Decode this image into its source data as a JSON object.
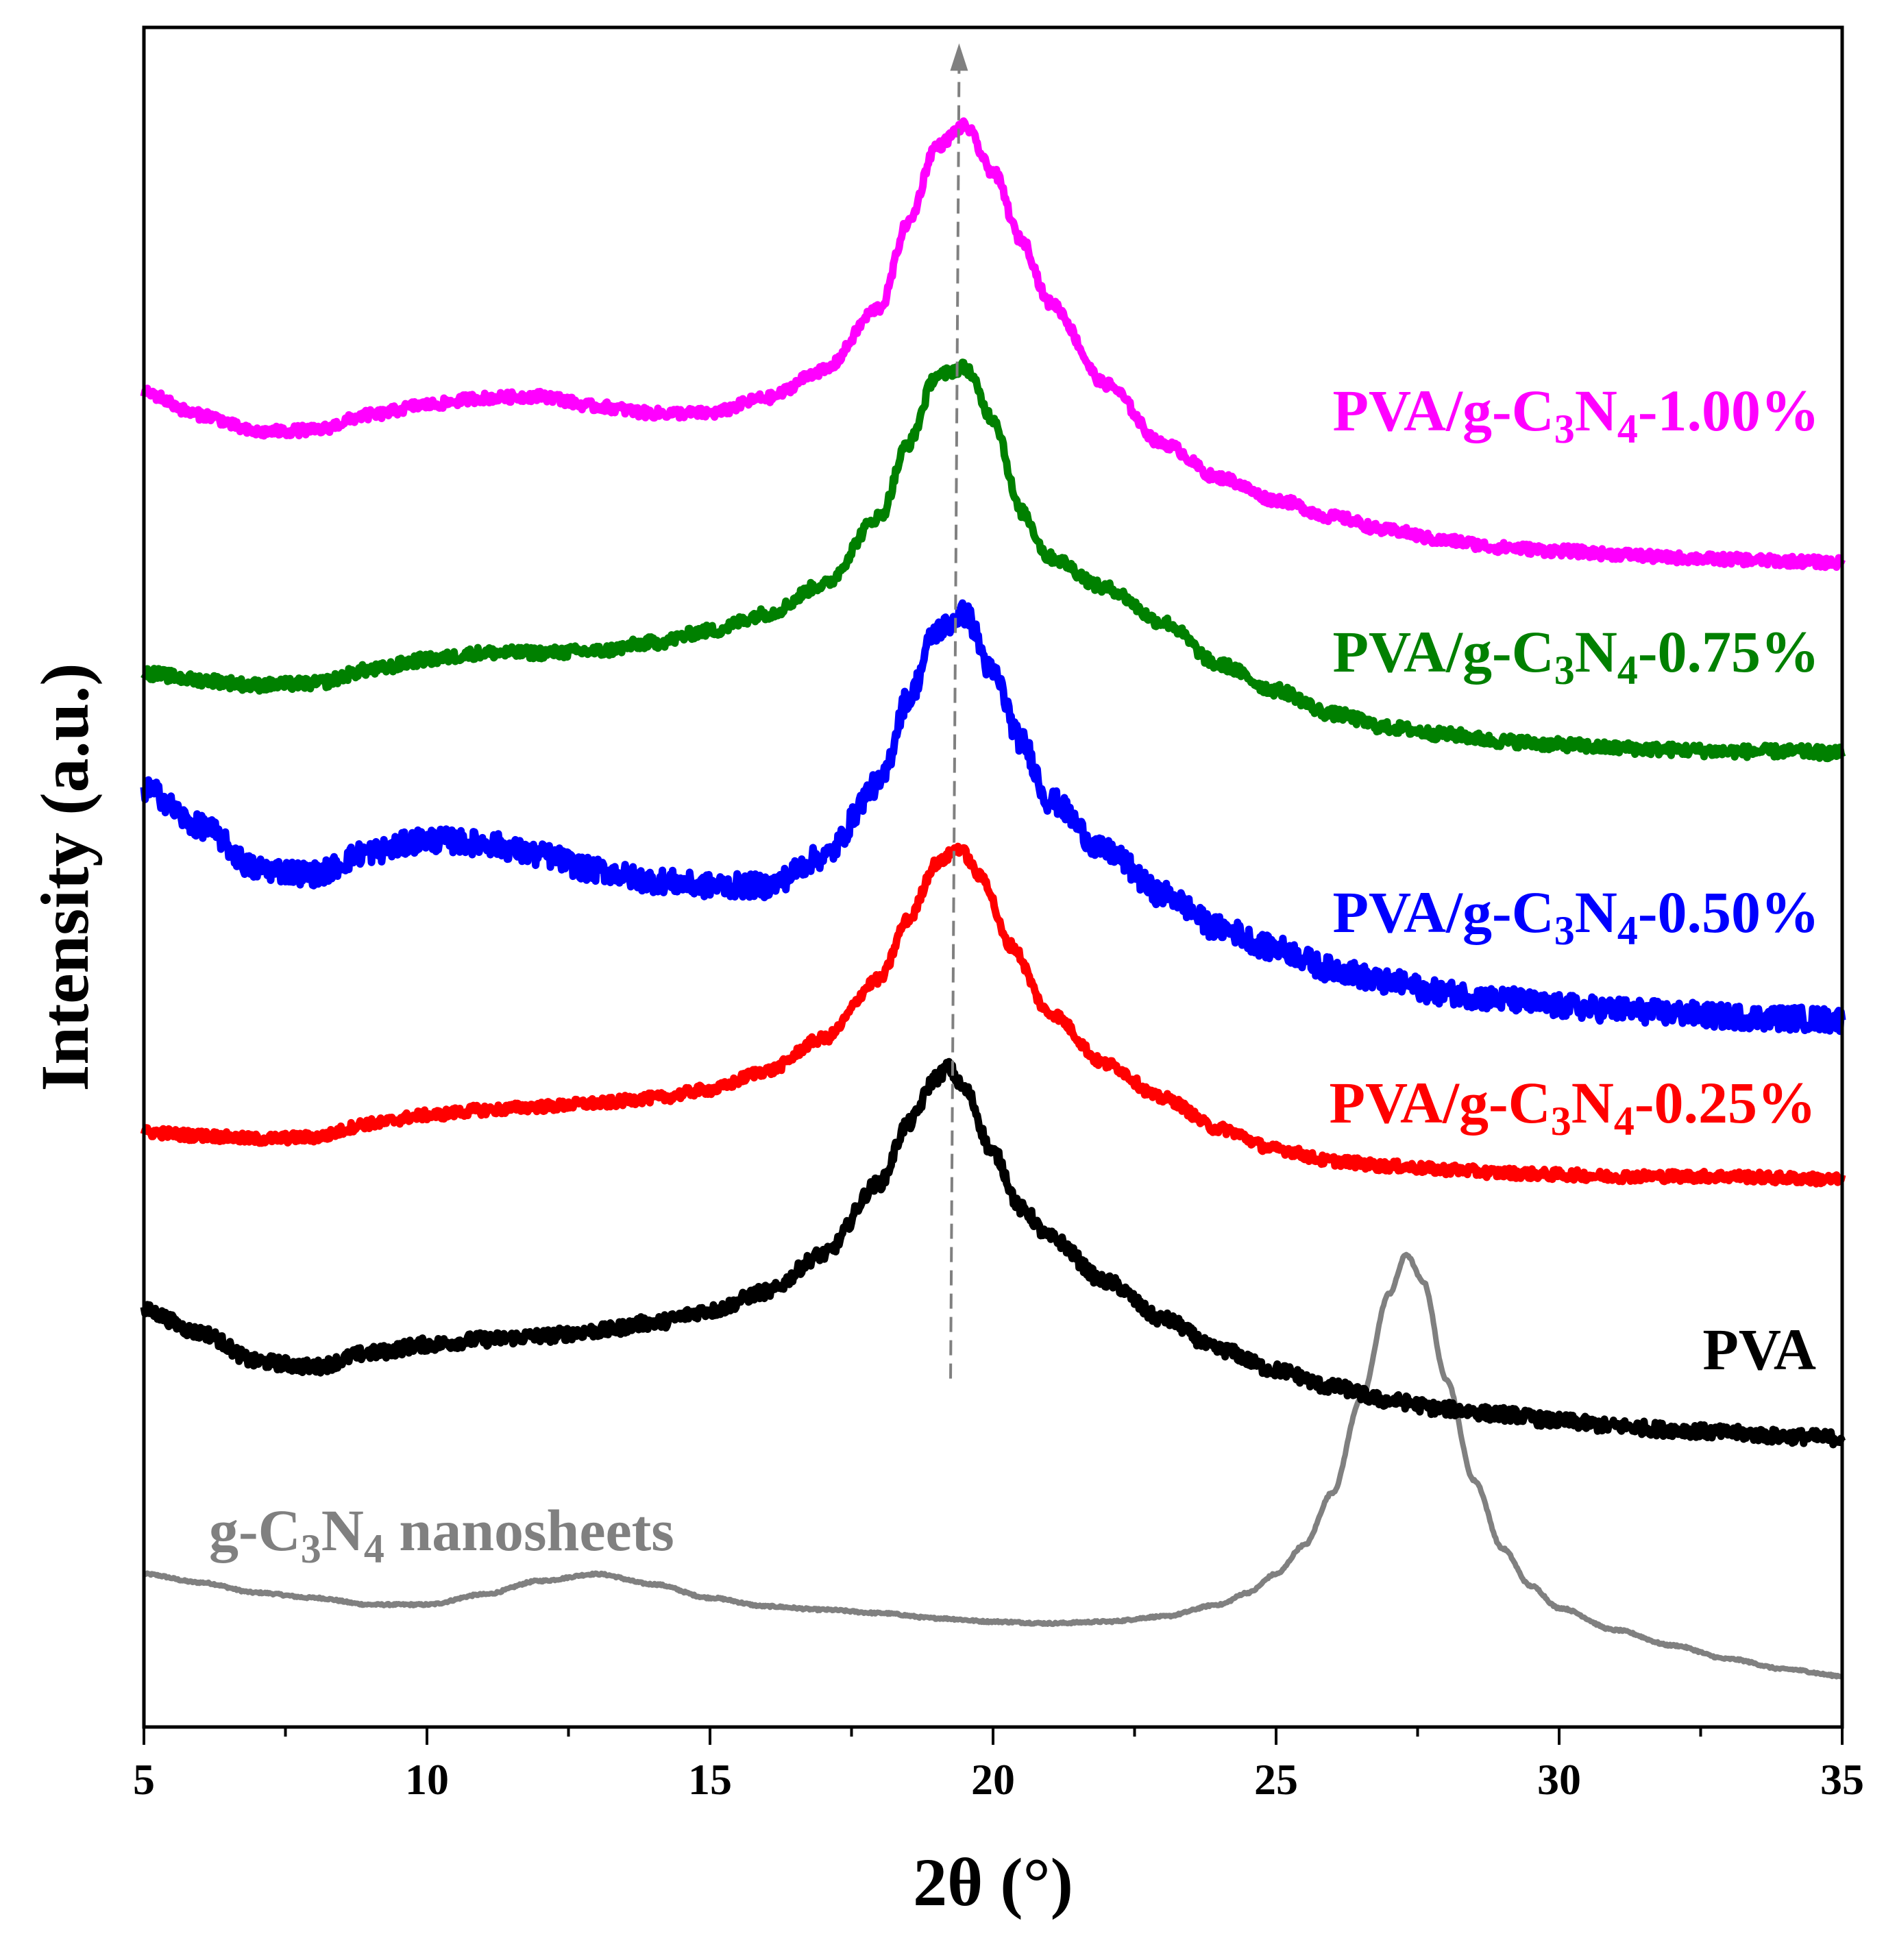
{
  "chart_data": {
    "type": "line",
    "title": "",
    "xlabel": "2θ (°)",
    "ylabel": "Intensity (a.u.)",
    "xlim": [
      5,
      35
    ],
    "ylim": [
      0,
      10
    ],
    "xticks": [
      5,
      10,
      15,
      20,
      25,
      30,
      35
    ],
    "xtick_labels": [
      "5",
      "10",
      "15",
      "20",
      "25",
      "30",
      "35"
    ],
    "yticks": "none",
    "grid": false,
    "legend": "labels beside each curve",
    "annotation": "dashed arrow at about 2θ = 19.4° pointing up",
    "series": [
      {
        "name": "g-C3N4 nanosheets",
        "label": {
          "main": "g-C",
          "sub1": "3",
          "mid": "N",
          "sub2": "4",
          "end": " nanosheets"
        },
        "color": "#808080",
        "noise": 0.006,
        "x": [
          5,
          6,
          7,
          8,
          9,
          10,
          11,
          12,
          13,
          14,
          15,
          16,
          17,
          18,
          19,
          20,
          21,
          22,
          23,
          24,
          24.5,
          25,
          25.5,
          26,
          26.5,
          27,
          27.3,
          27.6,
          28,
          28.5,
          29,
          29.5,
          30,
          31,
          32,
          33,
          34,
          35
        ],
        "y": [
          0.9,
          0.85,
          0.79,
          0.76,
          0.72,
          0.72,
          0.78,
          0.86,
          0.9,
          0.84,
          0.76,
          0.71,
          0.69,
          0.67,
          0.64,
          0.62,
          0.61,
          0.62,
          0.65,
          0.72,
          0.79,
          0.9,
          1.07,
          1.38,
          1.93,
          2.55,
          2.78,
          2.62,
          2.05,
          1.45,
          1.05,
          0.83,
          0.7,
          0.57,
          0.48,
          0.4,
          0.34,
          0.3
        ]
      },
      {
        "name": "PVA",
        "label": {
          "main": "PVA"
        },
        "color": "#000000",
        "noise": 0.04,
        "x": [
          5,
          6,
          7,
          8,
          9,
          10,
          11,
          12,
          13,
          14,
          15,
          16,
          17,
          18,
          18.5,
          19,
          19.2,
          19.5,
          20,
          20.5,
          21,
          22,
          23,
          24,
          25,
          26,
          27,
          28,
          29,
          30,
          31,
          32,
          33,
          34,
          35
        ],
        "y": [
          2.45,
          2.32,
          2.15,
          2.12,
          2.2,
          2.25,
          2.28,
          2.3,
          2.33,
          2.38,
          2.45,
          2.56,
          2.78,
          3.2,
          3.55,
          3.82,
          3.88,
          3.75,
          3.38,
          3.05,
          2.88,
          2.62,
          2.4,
          2.22,
          2.1,
          2.0,
          1.92,
          1.87,
          1.84,
          1.8,
          1.77,
          1.75,
          1.73,
          1.71,
          1.7
        ]
      },
      {
        "name": "PVA/g-C3N4-0.25%",
        "label": {
          "main": "PVA/g-C",
          "sub1": "3",
          "mid": "N",
          "sub2": "4",
          "end": "-0.25%"
        },
        "color": "#ff0000",
        "noise": 0.03,
        "x": [
          5,
          6,
          7,
          8,
          9,
          10,
          11,
          12,
          13,
          14,
          15,
          16,
          17,
          18,
          18.5,
          19,
          19.4,
          19.8,
          20.3,
          21,
          22,
          23,
          24,
          25,
          26,
          27,
          28,
          29,
          30,
          31,
          32,
          33,
          34,
          35
        ],
        "y": [
          3.5,
          3.48,
          3.46,
          3.47,
          3.55,
          3.6,
          3.63,
          3.65,
          3.67,
          3.7,
          3.75,
          3.86,
          4.05,
          4.4,
          4.75,
          5.08,
          5.17,
          5.0,
          4.6,
          4.2,
          3.9,
          3.7,
          3.52,
          3.4,
          3.33,
          3.3,
          3.28,
          3.26,
          3.25,
          3.24,
          3.24,
          3.24,
          3.23,
          3.22
        ]
      },
      {
        "name": "PVA/g-C3N4-0.50%",
        "label": {
          "main": "PVA/g-C",
          "sub1": "3",
          "mid": "N",
          "sub2": "4",
          "end": "-0.50%"
        },
        "color": "#0000ff",
        "noise": 0.07,
        "x": [
          5,
          6,
          7,
          8,
          9,
          10,
          11,
          12,
          13,
          14,
          15,
          16,
          17,
          18,
          18.5,
          19,
          19.5,
          20,
          20.5,
          21,
          22,
          23,
          24,
          25,
          26,
          27,
          28,
          29,
          30,
          31,
          32,
          33,
          34,
          35
        ],
        "y": [
          5.52,
          5.3,
          5.05,
          5.02,
          5.15,
          5.22,
          5.2,
          5.13,
          5.04,
          4.98,
          4.95,
          4.95,
          5.12,
          5.55,
          6.05,
          6.45,
          6.55,
          6.2,
          5.8,
          5.45,
          5.15,
          4.9,
          4.7,
          4.58,
          4.46,
          4.38,
          4.32,
          4.28,
          4.24,
          4.22,
          4.2,
          4.18,
          4.17,
          4.16
        ]
      },
      {
        "name": "PVA/g-C3N4-0.75%",
        "label": {
          "main": "PVA/g-C",
          "sub1": "3",
          "mid": "N",
          "sub2": "4",
          "end": "-0.75%"
        },
        "color": "#008000",
        "noise": 0.035,
        "x": [
          5,
          6,
          7,
          8,
          9,
          10,
          11,
          12,
          13,
          14,
          15,
          16,
          17,
          18,
          18.5,
          19,
          19.5,
          20,
          20.5,
          21,
          22,
          23,
          24,
          25,
          26,
          27,
          28,
          29,
          30,
          31,
          32,
          33,
          34,
          35
        ],
        "y": [
          6.2,
          6.16,
          6.13,
          6.14,
          6.22,
          6.28,
          6.32,
          6.32,
          6.33,
          6.38,
          6.45,
          6.55,
          6.72,
          7.12,
          7.55,
          7.95,
          8.0,
          7.7,
          7.15,
          6.88,
          6.7,
          6.5,
          6.25,
          6.1,
          5.96,
          5.88,
          5.84,
          5.8,
          5.78,
          5.76,
          5.75,
          5.74,
          5.74,
          5.73
        ]
      },
      {
        "name": "PVA/g-C3N4-1.00%",
        "label": {
          "main": "PVA/g-C",
          "sub1": "3",
          "mid": "N",
          "sub2": "4",
          "end": "-1.00%"
        },
        "color": "#ff00ff",
        "noise": 0.03,
        "x": [
          5,
          6,
          7,
          8,
          9,
          10,
          11,
          12,
          13,
          14,
          15,
          16,
          17,
          18,
          18.5,
          19,
          19.5,
          20,
          20.5,
          21,
          22,
          23,
          24,
          25,
          26,
          27,
          28,
          29,
          30,
          31,
          32,
          33,
          34,
          35
        ],
        "y": [
          7.85,
          7.72,
          7.62,
          7.63,
          7.72,
          7.78,
          7.82,
          7.83,
          7.77,
          7.73,
          7.73,
          7.82,
          7.98,
          8.35,
          8.85,
          9.3,
          9.42,
          9.15,
          8.75,
          8.38,
          7.9,
          7.55,
          7.35,
          7.22,
          7.12,
          7.04,
          6.98,
          6.94,
          6.92,
          6.9,
          6.88,
          6.87,
          6.86,
          6.85
        ]
      }
    ]
  }
}
